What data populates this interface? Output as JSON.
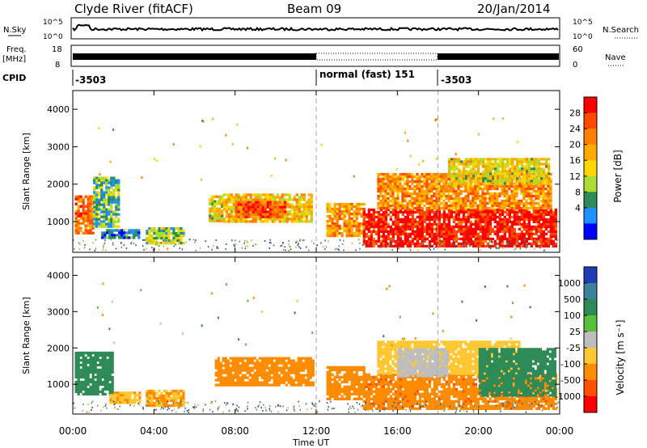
{
  "header": {
    "station": "Clyde River (fitACF)",
    "beam": "Beam 09",
    "date": "20/Jan/2014"
  },
  "strip": {
    "nsky_label": "N.Sky",
    "nsearch_label": "N.Search",
    "nsky_ticks": [
      "10^5",
      "10^0"
    ],
    "nsearch_ticks": [
      "10^5",
      "10^0"
    ],
    "freq_label_1": "Freq.",
    "freq_label_2": "[MHz]",
    "freq_ticks": [
      "18",
      "8"
    ],
    "nave_label": "Nave",
    "nave_ticks": [
      "60",
      "0"
    ],
    "cpid_label": "CPID",
    "cpid_segments": [
      {
        "start": 0,
        "end": 12,
        "label": "-3503"
      },
      {
        "start": 12,
        "end": 18,
        "label": "normal (fast) 151"
      },
      {
        "start": 18,
        "end": 24,
        "label": "-3503"
      }
    ]
  },
  "colorbars": {
    "power": {
      "label": "Power [dB]",
      "ticks": [
        "28",
        "24",
        "20",
        "16",
        "12",
        "8",
        "4"
      ],
      "colors": [
        "#ff0000",
        "#ff4a00",
        "#ff7f00",
        "#ffaa00",
        "#ffd700",
        "#aadc32",
        "#2e8b57",
        "#1e90ff",
        "#0000ff"
      ]
    },
    "velocity": {
      "label": "Velocity [m s⁻¹]",
      "ticks": [
        "1000",
        "500",
        "100",
        "25",
        "-25",
        "-100",
        "-500",
        "-1000"
      ],
      "colors": [
        "#1e3cb4",
        "#3e7f9e",
        "#2e8b57",
        "#5abf3c",
        "#bebebe",
        "#ffc832",
        "#ff8c00",
        "#ff5000",
        "#ff0000"
      ]
    }
  },
  "chart_data": [
    {
      "type": "heatmap",
      "name": "Power",
      "ylabel": "Slant Range [km]",
      "xlabel": "Time UT",
      "xlim": [
        0,
        24
      ],
      "ylim": [
        180,
        4500
      ],
      "yticks": [
        "1000",
        "2000",
        "3000",
        "4000"
      ],
      "xticks": [
        "00:00",
        "04:00",
        "08:00",
        "12:00",
        "16:00",
        "20:00",
        "00:00"
      ],
      "vlines": [
        12,
        18
      ],
      "regions": [
        {
          "t0": 0.1,
          "t1": 1.0,
          "r0": 700,
          "r1": 1700,
          "value": 24
        },
        {
          "t0": 1.0,
          "t1": 2.2,
          "r0": 900,
          "r1": 2200,
          "value": 10
        },
        {
          "t0": 1.4,
          "t1": 3.3,
          "r0": 600,
          "r1": 800,
          "value": 6
        },
        {
          "t0": 3.6,
          "t1": 5.5,
          "r0": 400,
          "r1": 850,
          "value": 12
        },
        {
          "t0": 6.7,
          "t1": 7.4,
          "r0": 1000,
          "r1": 1700,
          "value": 16
        },
        {
          "t0": 7.4,
          "t1": 11.8,
          "r0": 1000,
          "r1": 1750,
          "value": 18
        },
        {
          "t0": 8.0,
          "t1": 10.5,
          "r0": 1150,
          "r1": 1550,
          "value": 26
        },
        {
          "t0": 12.5,
          "t1": 14.3,
          "r0": 650,
          "r1": 1500,
          "value": 22
        },
        {
          "t0": 14.3,
          "t1": 23.8,
          "r0": 350,
          "r1": 1350,
          "value": 30
        },
        {
          "t0": 15.0,
          "t1": 23.5,
          "r0": 1350,
          "r1": 2300,
          "value": 22
        },
        {
          "t0": 18.5,
          "t1": 23.5,
          "r0": 2000,
          "r1": 2700,
          "value": 16
        }
      ]
    },
    {
      "type": "heatmap",
      "name": "Velocity",
      "ylabel": "Slant Range [km]",
      "xlabel": "Time UT",
      "xlim": [
        0,
        24
      ],
      "ylim": [
        180,
        4500
      ],
      "yticks": [
        "1000",
        "2000",
        "3000",
        "4000"
      ],
      "xticks": [
        "00:00",
        "04:00",
        "08:00",
        "12:00",
        "16:00",
        "20:00",
        "00:00"
      ],
      "vlines": [
        12,
        18
      ],
      "regions": [
        {
          "t0": 0.1,
          "t1": 2.0,
          "r0": 700,
          "r1": 1900,
          "value": 200
        },
        {
          "t0": 1.8,
          "t1": 3.3,
          "r0": 500,
          "r1": 800,
          "value": -80
        },
        {
          "t0": 3.6,
          "t1": 5.5,
          "r0": 400,
          "r1": 850,
          "value": -100
        },
        {
          "t0": 7.0,
          "t1": 11.8,
          "r0": 1000,
          "r1": 1750,
          "value": -300
        },
        {
          "t0": 12.5,
          "t1": 14.3,
          "r0": 600,
          "r1": 1500,
          "value": -300
        },
        {
          "t0": 14.3,
          "t1": 23.8,
          "r0": 350,
          "r1": 1300,
          "value": -350
        },
        {
          "t0": 15.0,
          "t1": 22.0,
          "r0": 1300,
          "r1": 2200,
          "value": -60
        },
        {
          "t0": 16.0,
          "t1": 18.5,
          "r0": 1200,
          "r1": 2000,
          "value": 0
        },
        {
          "t0": 20.0,
          "t1": 23.8,
          "r0": 700,
          "r1": 2000,
          "value": 300
        }
      ]
    }
  ]
}
